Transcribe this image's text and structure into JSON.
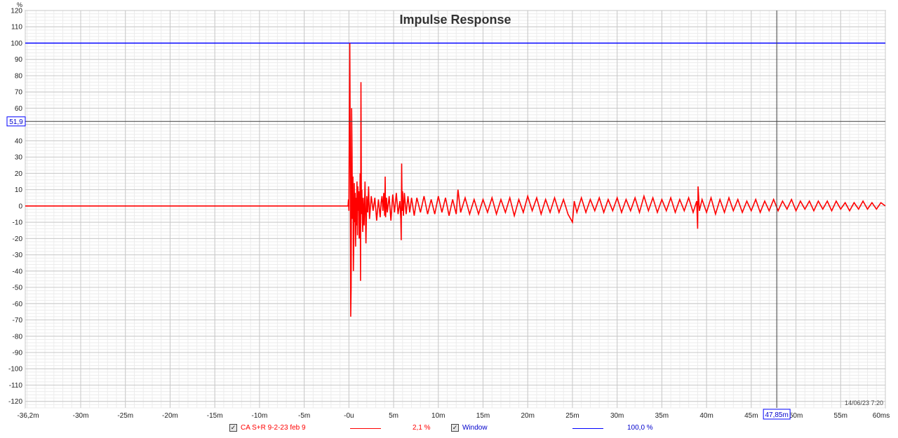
{
  "chart_data": {
    "type": "line",
    "title": "Impulse Response",
    "y_unit": "%",
    "x_unit": "ms",
    "xlim": [
      -36.2,
      60
    ],
    "ylim": [
      -124,
      120
    ],
    "x_ticks": [
      {
        "v": -36.2,
        "label": "-36,2m"
      },
      {
        "v": -30,
        "label": "-30m"
      },
      {
        "v": -25,
        "label": "-25m"
      },
      {
        "v": -20,
        "label": "-20m"
      },
      {
        "v": -15,
        "label": "-15m"
      },
      {
        "v": -10,
        "label": "-10m"
      },
      {
        "v": -5,
        "label": "-5m"
      },
      {
        "v": 0,
        "label": "-0u"
      },
      {
        "v": 5,
        "label": "5m"
      },
      {
        "v": 10,
        "label": "10m"
      },
      {
        "v": 15,
        "label": "15m"
      },
      {
        "v": 20,
        "label": "20m"
      },
      {
        "v": 25,
        "label": "25m"
      },
      {
        "v": 30,
        "label": "30m"
      },
      {
        "v": 35,
        "label": "35m"
      },
      {
        "v": 40,
        "label": "40m"
      },
      {
        "v": 45,
        "label": "45m"
      },
      {
        "v": 50,
        "label": "50m"
      },
      {
        "v": 55,
        "label": "55m"
      },
      {
        "v": 60,
        "label": "60ms"
      }
    ],
    "y_ticks": [
      120,
      110,
      100,
      90,
      80,
      70,
      60,
      40,
      30,
      20,
      10,
      0,
      -10,
      -20,
      -30,
      -40,
      -50,
      -60,
      -70,
      -80,
      -90,
      -100,
      -110,
      -120
    ],
    "grid": true,
    "cursor": {
      "x": 47.85,
      "y": 51.9,
      "x_label": "47,85m",
      "y_label": "51,9"
    },
    "timestamp": "14/06/23 7:20",
    "series": [
      {
        "name": "CA S+R 9-2-23 feb 9",
        "color": "#ff0000",
        "value_label": "2,1 %",
        "points": [
          [
            -36.2,
            0
          ],
          [
            -0.1,
            0
          ],
          [
            -0.05,
            4
          ],
          [
            0,
            -3
          ],
          [
            0.05,
            55
          ],
          [
            0.1,
            100
          ],
          [
            0.15,
            30
          ],
          [
            0.2,
            -68
          ],
          [
            0.25,
            -50
          ],
          [
            0.3,
            60
          ],
          [
            0.35,
            33
          ],
          [
            0.4,
            -8
          ],
          [
            0.45,
            18
          ],
          [
            0.5,
            -40
          ],
          [
            0.55,
            -20
          ],
          [
            0.6,
            14
          ],
          [
            0.65,
            -10
          ],
          [
            0.7,
            8
          ],
          [
            0.75,
            -25
          ],
          [
            0.8,
            5
          ],
          [
            0.85,
            -12
          ],
          [
            0.9,
            15
          ],
          [
            0.95,
            -18
          ],
          [
            1.0,
            12
          ],
          [
            1.05,
            -3
          ],
          [
            1.1,
            9
          ],
          [
            1.15,
            -20
          ],
          [
            1.2,
            -15
          ],
          [
            1.25,
            20
          ],
          [
            1.3,
            -46
          ],
          [
            1.35,
            76
          ],
          [
            1.4,
            -5
          ],
          [
            1.45,
            10
          ],
          [
            1.5,
            -8
          ],
          [
            1.55,
            -16
          ],
          [
            1.6,
            5
          ],
          [
            1.7,
            -12
          ],
          [
            1.8,
            15
          ],
          [
            1.9,
            -23
          ],
          [
            2.0,
            6
          ],
          [
            2.1,
            -4
          ],
          [
            2.2,
            12
          ],
          [
            2.3,
            -8
          ],
          [
            2.5,
            6
          ],
          [
            2.7,
            -3
          ],
          [
            2.9,
            5
          ],
          [
            3.1,
            -9
          ],
          [
            3.3,
            4
          ],
          [
            3.5,
            -7
          ],
          [
            3.6,
            2
          ],
          [
            3.7,
            6
          ],
          [
            3.8,
            -3
          ],
          [
            3.9,
            8
          ],
          [
            4.0,
            -6
          ],
          [
            4.05,
            18
          ],
          [
            4.1,
            -7
          ],
          [
            4.2,
            5
          ],
          [
            4.3,
            -4
          ],
          [
            4.5,
            6
          ],
          [
            4.7,
            -9
          ],
          [
            4.9,
            7
          ],
          [
            5.1,
            -4
          ],
          [
            5.3,
            8
          ],
          [
            5.5,
            -5
          ],
          [
            5.7,
            3
          ],
          [
            5.8,
            -8
          ],
          [
            5.85,
            -21
          ],
          [
            5.9,
            26
          ],
          [
            5.95,
            -3
          ],
          [
            6.0,
            9
          ],
          [
            6.1,
            -6
          ],
          [
            6.2,
            8
          ],
          [
            6.4,
            -5
          ],
          [
            6.6,
            6
          ],
          [
            6.8,
            -4
          ],
          [
            7.0,
            5
          ],
          [
            7.3,
            -6
          ],
          [
            7.6,
            5
          ],
          [
            8.0,
            -4
          ],
          [
            8.4,
            6
          ],
          [
            8.8,
            -5
          ],
          [
            9.2,
            4
          ],
          [
            9.6,
            -5
          ],
          [
            10.0,
            6
          ],
          [
            10.4,
            -4
          ],
          [
            10.8,
            5
          ],
          [
            11.2,
            -6
          ],
          [
            11.6,
            4
          ],
          [
            12.0,
            -5
          ],
          [
            12.2,
            10
          ],
          [
            12.5,
            -4
          ],
          [
            13.0,
            5
          ],
          [
            13.5,
            -5
          ],
          [
            14.0,
            4
          ],
          [
            14.5,
            -5
          ],
          [
            15.0,
            4
          ],
          [
            15.5,
            -4
          ],
          [
            16.0,
            5
          ],
          [
            16.5,
            -5
          ],
          [
            17.0,
            4
          ],
          [
            17.5,
            -4
          ],
          [
            18.0,
            5
          ],
          [
            18.5,
            -6
          ],
          [
            19.0,
            4
          ],
          [
            19.5,
            -4
          ],
          [
            20.0,
            6
          ],
          [
            20.5,
            -3
          ],
          [
            21.0,
            5
          ],
          [
            21.5,
            -5
          ],
          [
            22.0,
            4
          ],
          [
            22.5,
            -4
          ],
          [
            23.0,
            5
          ],
          [
            23.5,
            -4
          ],
          [
            24.0,
            4
          ],
          [
            24.5,
            -5
          ],
          [
            25.0,
            -10
          ],
          [
            25.2,
            3
          ],
          [
            25.5,
            -4
          ],
          [
            26.0,
            5
          ],
          [
            26.5,
            -4
          ],
          [
            27.0,
            4
          ],
          [
            27.5,
            -3
          ],
          [
            28.0,
            5
          ],
          [
            28.5,
            -4
          ],
          [
            29.0,
            4
          ],
          [
            29.5,
            -3
          ],
          [
            30.0,
            5
          ],
          [
            30.5,
            -4
          ],
          [
            31.0,
            4
          ],
          [
            31.5,
            -3
          ],
          [
            32.0,
            5
          ],
          [
            32.5,
            -4
          ],
          [
            33.0,
            6
          ],
          [
            33.5,
            -3
          ],
          [
            34.0,
            5
          ],
          [
            34.5,
            -4
          ],
          [
            35.0,
            4
          ],
          [
            35.5,
            -3
          ],
          [
            36.0,
            5
          ],
          [
            36.5,
            -4
          ],
          [
            37.0,
            4
          ],
          [
            37.5,
            -3
          ],
          [
            38.0,
            5
          ],
          [
            38.5,
            -4
          ],
          [
            38.9,
            3
          ],
          [
            39.0,
            -14
          ],
          [
            39.05,
            12
          ],
          [
            39.2,
            -3
          ],
          [
            39.5,
            4
          ],
          [
            40.0,
            -4
          ],
          [
            40.5,
            5
          ],
          [
            41.0,
            -5
          ],
          [
            41.5,
            4
          ],
          [
            42.0,
            -4
          ],
          [
            42.5,
            5
          ],
          [
            43.0,
            -3
          ],
          [
            43.5,
            4
          ],
          [
            44.0,
            -4
          ],
          [
            44.5,
            3
          ],
          [
            45.0,
            -3
          ],
          [
            45.5,
            4
          ],
          [
            46.0,
            -4
          ],
          [
            46.5,
            3
          ],
          [
            47.0,
            -3
          ],
          [
            47.5,
            4
          ],
          [
            48.0,
            -3
          ],
          [
            48.5,
            3
          ],
          [
            49.0,
            -2
          ],
          [
            49.5,
            4
          ],
          [
            50.0,
            -3
          ],
          [
            50.5,
            3
          ],
          [
            51.0,
            -2
          ],
          [
            51.5,
            3
          ],
          [
            52.0,
            -3
          ],
          [
            52.5,
            3
          ],
          [
            53.0,
            -2
          ],
          [
            53.5,
            3
          ],
          [
            54.0,
            -3
          ],
          [
            54.5,
            3
          ],
          [
            55.0,
            -2
          ],
          [
            55.5,
            2
          ],
          [
            56.0,
            -3
          ],
          [
            56.5,
            2
          ],
          [
            57.0,
            -2
          ],
          [
            57.5,
            3
          ],
          [
            58.0,
            -2
          ],
          [
            58.5,
            2
          ],
          [
            59.0,
            -2
          ],
          [
            59.5,
            2
          ],
          [
            60.0,
            0
          ]
        ]
      },
      {
        "name": "Window",
        "color": "#0000ff",
        "value_label": "100,0 %",
        "points": [
          [
            -36.2,
            100
          ],
          [
            60,
            100
          ]
        ]
      }
    ]
  }
}
